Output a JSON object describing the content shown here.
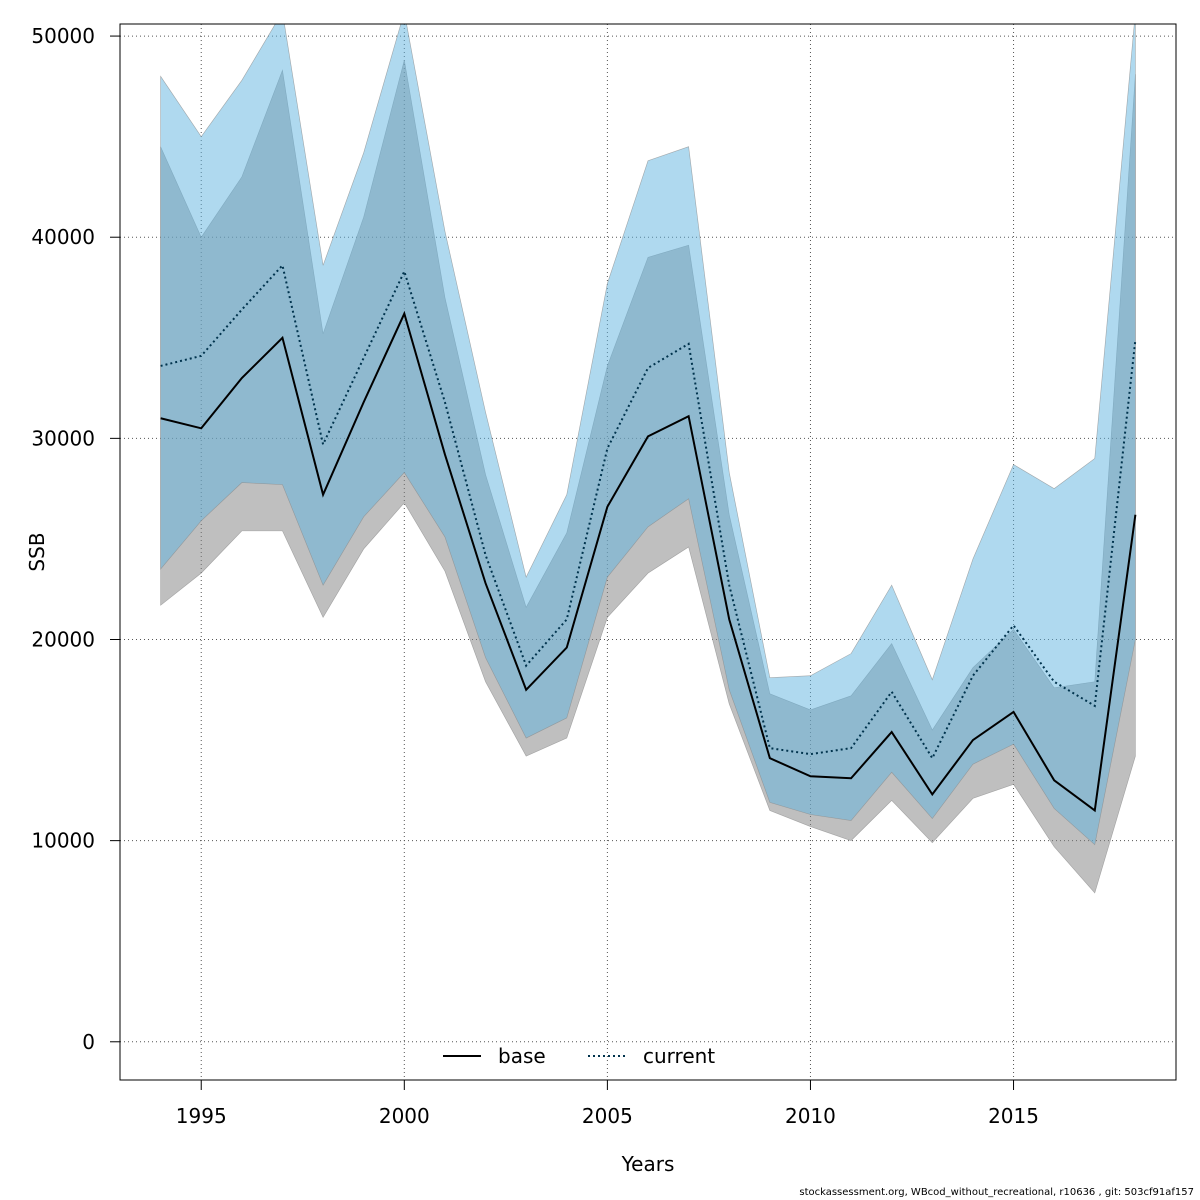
{
  "chart_data": {
    "type": "area",
    "xlabel": "Years",
    "ylabel": "SSB",
    "xlim": [
      1993,
      2019
    ],
    "ylim": [
      -1900,
      50600
    ],
    "x_ticks": [
      1995,
      2000,
      2005,
      2010,
      2015
    ],
    "y_ticks": [
      0,
      10000,
      20000,
      30000,
      40000,
      50000
    ],
    "grid": true,
    "legend_position": "bottom-center",
    "x": [
      1994,
      1995,
      1996,
      1997,
      1998,
      1999,
      2000,
      2001,
      2002,
      2003,
      2004,
      2005,
      2006,
      2007,
      2008,
      2009,
      2010,
      2011,
      2012,
      2013,
      2014,
      2015,
      2016,
      2017,
      2018
    ],
    "series": [
      {
        "name": "base",
        "line_style": "solid",
        "line_color": "#000000",
        "band_color": "#7f7f7f",
        "values": [
          31000,
          30500,
          33000,
          35000,
          27200,
          31800,
          36200,
          29200,
          22800,
          17500,
          19600,
          26600,
          30100,
          31100,
          21000,
          14100,
          13200,
          13100,
          15400,
          12300,
          15000,
          16400,
          13000,
          11500,
          26200
        ],
        "lower": [
          21700,
          23300,
          25400,
          25400,
          21100,
          24500,
          26800,
          23400,
          17900,
          14200,
          15100,
          21100,
          23300,
          24600,
          16800,
          11500,
          10700,
          10000,
          12000,
          9900,
          12100,
          12800,
          9700,
          7400,
          14200
        ],
        "upper": [
          44500,
          40000,
          43000,
          48300,
          35200,
          41000,
          48800,
          37000,
          28200,
          21600,
          25300,
          33600,
          39000,
          39600,
          26200,
          17300,
          16500,
          17200,
          19800,
          15500,
          18600,
          20500,
          17600,
          17900,
          48100
        ]
      },
      {
        "name": "current",
        "line_style": "dotted",
        "line_color": "#00334d",
        "band_color": "#5fb4e0",
        "values": [
          33600,
          34100,
          36400,
          38600,
          29700,
          34000,
          38300,
          31800,
          24200,
          18700,
          21000,
          29500,
          33500,
          34700,
          22700,
          14600,
          14300,
          14600,
          17400,
          14100,
          18200,
          20700,
          17900,
          16700,
          34900
        ],
        "lower": [
          23500,
          25900,
          27800,
          27700,
          22700,
          26100,
          28300,
          25100,
          19100,
          15100,
          16100,
          23100,
          25600,
          27000,
          17500,
          11900,
          11300,
          11000,
          13400,
          11100,
          13800,
          14800,
          11600,
          9800,
          20000
        ],
        "upper": [
          48000,
          45000,
          47800,
          51200,
          38600,
          44200,
          51200,
          40300,
          31300,
          23100,
          27200,
          37700,
          43800,
          44500,
          28300,
          18100,
          18200,
          19300,
          22700,
          18000,
          24000,
          28700,
          27500,
          29000,
          51200
        ]
      }
    ]
  },
  "legend": {
    "items": [
      {
        "label": "base",
        "style": "solid",
        "color": "#000000"
      },
      {
        "label": "current",
        "style": "dotted",
        "color": "#00334d"
      }
    ]
  },
  "footer": {
    "text": "stockassessment.org, WBcod_without_recreational, r10636 , git: 503cf91af157"
  }
}
